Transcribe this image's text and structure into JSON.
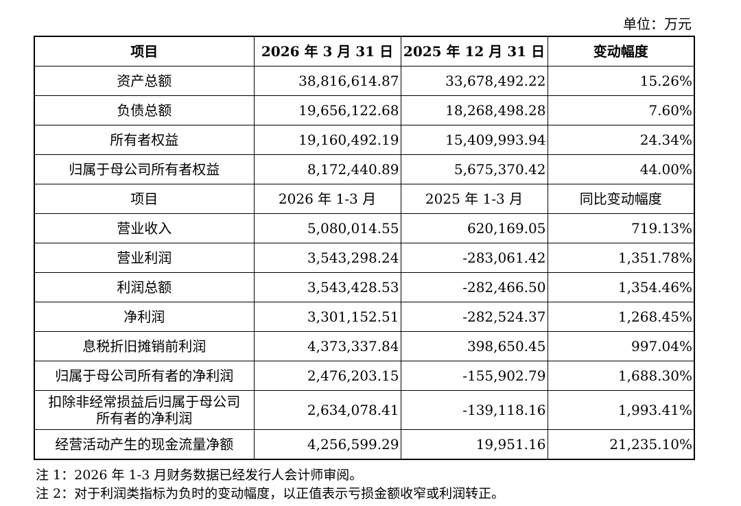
{
  "unit_label": "单位：万元",
  "balance_header": [
    "项目",
    "2026 年 3 月 31 日",
    "2025 年 12 月 31 日",
    "变动幅度"
  ],
  "balance_rows": [
    {
      "item": "资产总额",
      "current": "38,816,614.87",
      "prior": "33,678,492.22",
      "change": "15.26%"
    },
    {
      "item": "负债总额",
      "current": "19,656,122.68",
      "prior": "18,268,498.28",
      "change": "7.60%"
    },
    {
      "item": "所有者权益",
      "current": "19,160,492.19",
      "prior": "15,409,993.94",
      "change": "24.34%"
    },
    {
      "item": "归属于母公司所有者权益",
      "current": "8,172,440.89",
      "prior": "5,675,370.42",
      "change": "44.00%"
    }
  ],
  "income_header": [
    "项目",
    "2026 年 1-3 月",
    "2025 年 1-3 月",
    "同比变动幅度"
  ],
  "income_rows": [
    {
      "item": "营业收入",
      "current": "5,080,014.55",
      "prior": "620,169.05",
      "change": "719.13%"
    },
    {
      "item": "营业利润",
      "current": "3,543,298.24",
      "prior": "-283,061.42",
      "change": "1,351.78%"
    },
    {
      "item": "利润总额",
      "current": "3,543,428.53",
      "prior": "-282,466.50",
      "change": "1,354.46%"
    },
    {
      "item": "净利润",
      "current": "3,301,152.51",
      "prior": "-282,524.37",
      "change": "1,268.45%"
    },
    {
      "item": "息税折旧摊销前利润",
      "current": "4,373,337.84",
      "prior": "398,650.45",
      "change": "997.04%"
    },
    {
      "item": "归属于母公司所有者的净利润",
      "current": "2,476,203.15",
      "prior": "-155,902.79",
      "change": "1,688.30%"
    },
    {
      "item": "扣除非经常损益后归属于母公司所有者的净利润",
      "item_line1": "扣除非经常损益后归属于母公司",
      "item_line2": "所有者的净利润",
      "current": "2,634,078.41",
      "prior": "-139,118.16",
      "change": "1,993.41%"
    },
    {
      "item": "经营活动产生的现金流量净额",
      "current": "4,256,599.29",
      "prior": "19,951.16",
      "change": "21,235.10%"
    }
  ],
  "notes": [
    "注 1：2026 年 1-3 月财务数据已经发行人会计师审阅。",
    "注 2：对于利润类指标为负时的变动幅度，以正值表示亏损金额收窄或利润转正。"
  ]
}
